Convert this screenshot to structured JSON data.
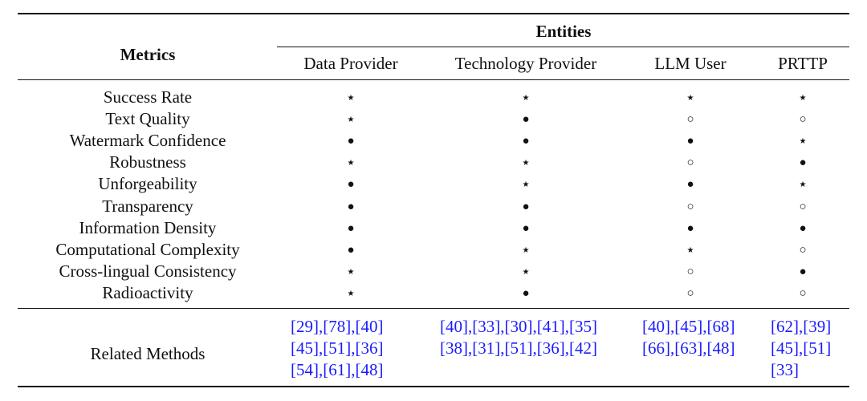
{
  "table": {
    "metrics_header": "Metrics",
    "group_header": "Entities",
    "columns": [
      "Data Provider",
      "Technology Provider",
      "LLM User",
      "PRTTP"
    ],
    "rows": [
      {
        "metric": "Success Rate",
        "marks": [
          "⋆",
          "⋆",
          "⋆",
          "⋆"
        ]
      },
      {
        "metric": "Text Quality",
        "marks": [
          "⋆",
          "●",
          "○",
          "○"
        ]
      },
      {
        "metric": "Watermark Confidence",
        "marks": [
          "●",
          "●",
          "●",
          "⋆"
        ]
      },
      {
        "metric": "Robustness",
        "marks": [
          "⋆",
          "⋆",
          "○",
          "●"
        ]
      },
      {
        "metric": "Unforgeability",
        "marks": [
          "●",
          "⋆",
          "●",
          "⋆"
        ]
      },
      {
        "metric": "Transparency",
        "marks": [
          "●",
          "●",
          "○",
          "○"
        ]
      },
      {
        "metric": "Information Density",
        "marks": [
          "●",
          "●",
          "●",
          "●"
        ]
      },
      {
        "metric": "Computational Complexity",
        "marks": [
          "●",
          "⋆",
          "⋆",
          "○"
        ]
      },
      {
        "metric": "Cross-lingual Consistency",
        "marks": [
          "⋆",
          "⋆",
          "○",
          "●"
        ]
      },
      {
        "metric": "Radioactivity",
        "marks": [
          "⋆",
          "●",
          "○",
          "○"
        ]
      }
    ],
    "related_label": "Related Methods",
    "related": [
      [
        "[29],[78],[40]",
        "[45],[51],[36]",
        "[54],[61],[48]"
      ],
      [
        "[40],[33],[30],[41],[35]",
        "[38],[31],[51],[36],[42]"
      ],
      [
        "[40],[45],[68]",
        "[66],[63],[48]"
      ],
      [
        "[62],[39]",
        "[45],[51]",
        "[33]"
      ]
    ]
  }
}
